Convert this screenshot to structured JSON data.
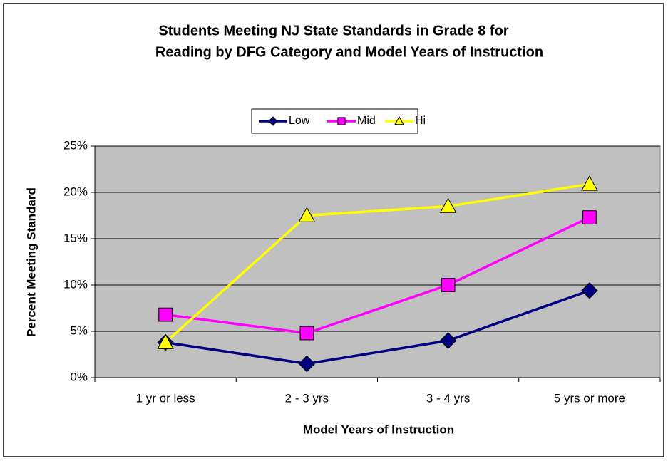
{
  "chart_data": {
    "type": "line",
    "title": [
      "Students Meeting NJ State Standards in Grade 8 for",
      "Reading by DFG Category and Model Years of Instruction"
    ],
    "x_label": "Model Years of Instruction",
    "y_label": "Percent Meeting Standard",
    "categories": [
      "1 yr or less",
      "2 - 3 yrs",
      "3 - 4 yrs",
      "5 yrs or more"
    ],
    "series": [
      {
        "name": "Low",
        "color": "#000080",
        "marker": "diamond",
        "values": [
          3.8,
          1.5,
          4.0,
          9.4
        ]
      },
      {
        "name": "Mid",
        "color": "#ff00ff",
        "marker": "square",
        "values": [
          6.8,
          4.8,
          10.0,
          17.3
        ]
      },
      {
        "name": "Hi",
        "color": "#ffff00",
        "marker": "triangle",
        "values": [
          3.8,
          17.5,
          18.5,
          20.9
        ]
      }
    ],
    "ylim": [
      0,
      25
    ],
    "yticks": [
      {
        "value": 0,
        "label": "0%"
      },
      {
        "value": 5,
        "label": "5%"
      },
      {
        "value": 10,
        "label": "10%"
      },
      {
        "value": 15,
        "label": "15%"
      },
      {
        "value": 20,
        "label": "20%"
      },
      {
        "value": 25,
        "label": "25%"
      }
    ],
    "grid": true,
    "legend": "top"
  }
}
